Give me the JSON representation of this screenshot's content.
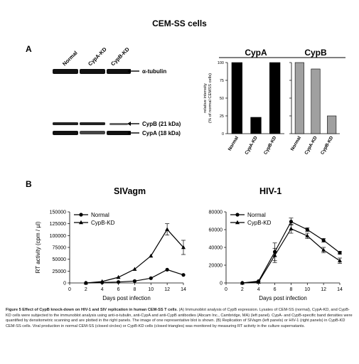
{
  "figure": {
    "title": "CEM-SS cells",
    "panel_a": "A",
    "panel_b": "B"
  },
  "blot": {
    "lanes": [
      "Normal",
      "CypA-KD",
      "CypB-KD"
    ],
    "labels": {
      "tubulin": "α-tubulin",
      "cypb": "CypB (21 kDa)",
      "cypa": "CypA (18 kDa)"
    }
  },
  "chart_data": [
    {
      "type": "bar",
      "title": "CypA",
      "categories": [
        "Normal",
        "CypA-KD",
        "CypB-KD"
      ],
      "values": [
        100,
        23,
        100
      ],
      "ylabel": "relative intensity (% of normal CEMSS cells)",
      "ylim": [
        0,
        100
      ],
      "yticks": [
        "0",
        "25",
        "50",
        "75",
        "100"
      ],
      "bar_color": "#000000"
    },
    {
      "type": "bar",
      "title": "CypB",
      "categories": [
        "Normal",
        "CypA-KD",
        "CypB-KD"
      ],
      "values": [
        100,
        91,
        25
      ],
      "ylim": [
        0,
        100
      ],
      "bar_color": "#a0a0a0"
    },
    {
      "type": "line",
      "title": "SIVagm",
      "xlabel": "Days post infection",
      "ylabel": "RT activity (cpm / µl)",
      "x": [
        0,
        2,
        4,
        6,
        8,
        10,
        12,
        14
      ],
      "xticks": [
        "0",
        "2",
        "4",
        "6",
        "8",
        "10",
        "12",
        "14"
      ],
      "ylim": [
        0,
        150000
      ],
      "yticks": [
        "0",
        "25000",
        "50000",
        "75000",
        "100000",
        "125000",
        "150000"
      ],
      "legend": "top-left",
      "series": [
        {
          "name": "Normal",
          "marker": "circle",
          "x": [
            2,
            4,
            6,
            8,
            10,
            12,
            14
          ],
          "values": [
            0,
            1000,
            2000,
            4000,
            10000,
            28000,
            17000
          ]
        },
        {
          "name": "CypB-KD",
          "marker": "triangle",
          "x": [
            2,
            4,
            6,
            8,
            10,
            12,
            14
          ],
          "values": [
            0,
            3000,
            12000,
            29000,
            57000,
            113000,
            75000
          ],
          "err": [
            0,
            0,
            0,
            0,
            0,
            12000,
            15000
          ]
        }
      ]
    },
    {
      "type": "line",
      "title": "HIV-1",
      "xlabel": "Days post infection",
      "x": [
        0,
        2,
        4,
        6,
        8,
        10,
        12,
        14
      ],
      "xticks": [
        "0",
        "2",
        "4",
        "6",
        "8",
        "10",
        "12",
        "14"
      ],
      "ylim": [
        0,
        80000
      ],
      "yticks": [
        "0",
        "20000",
        "40000",
        "60000",
        "80000"
      ],
      "legend": "top-left",
      "series": [
        {
          "name": "Normal",
          "marker": "circle",
          "x": [
            2,
            4,
            6,
            8,
            10,
            12,
            14
          ],
          "values": [
            0,
            2000,
            35000,
            69000,
            60000,
            48000,
            34000
          ],
          "err": [
            0,
            0,
            10000,
            4000,
            2000,
            2000,
            1500
          ]
        },
        {
          "name": "CypB-KD",
          "marker": "triangle",
          "x": [
            2,
            4,
            6,
            8,
            10,
            12,
            14
          ],
          "values": [
            0,
            1000,
            31000,
            61000,
            53000,
            37000,
            25000
          ],
          "err": [
            0,
            0,
            8000,
            5000,
            3000,
            3000,
            3000
          ]
        }
      ]
    }
  ],
  "caption": {
    "bold": "Figure 5 Effect of CypB knock-down on HIV-1 and SIV replication in human CEM-SS T cells",
    "text": ". (A) Immunoblot analysis of CypB expression. Lysates of CEM-SS (normal), CypA-KD, and CypB-KD cells were subjected to the immunoblot analysis using anti-α-tubulin, anti-CypA and anti-CypB antibodies (Abcam Inc., Cambridge, MA) (left panel). CypA- and CypB-specific band densities were quantified by densitometric scanning and are plotted in the right panels. The image of one representative blot is shown. (B) Replication of SIVagm (left panels) or HIV-1 (right panels) in CypB-KD CEM-SS cells. Viral production in normal CEM-SS (closed circles) or CypB-KD cells (closed triangles) was monitored by measuring RT activity in the culture supernatants."
  }
}
